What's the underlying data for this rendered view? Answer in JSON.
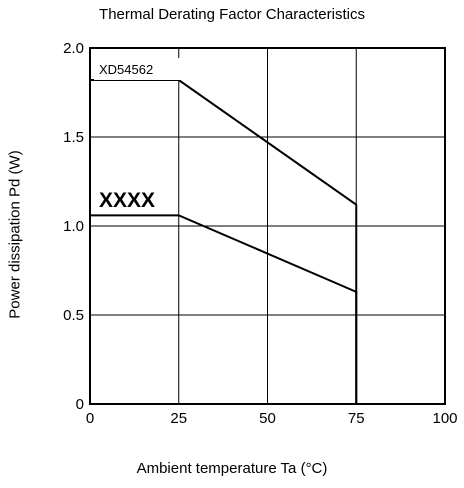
{
  "chart_data": {
    "type": "line",
    "title": "Thermal Derating Factor Characteristics",
    "xlabel": "Ambient temperature  Ta (°C)",
    "ylabel": "Power dissipation  Pd (W)",
    "xlim": [
      0,
      100
    ],
    "ylim": [
      0,
      2.0
    ],
    "xticks": [
      "0",
      "25",
      "50",
      "75",
      "100"
    ],
    "yticks": [
      "0",
      "0.5",
      "1.0",
      "1.5",
      "2.0"
    ],
    "grid": true,
    "series": [
      {
        "name": "XD54562",
        "points": [
          [
            0,
            1.82
          ],
          [
            25,
            1.82
          ],
          [
            75,
            1.12
          ],
          [
            75,
            0
          ]
        ]
      },
      {
        "name": "XXXX",
        "points": [
          [
            0,
            1.06
          ],
          [
            25,
            1.06
          ],
          [
            75,
            0.63
          ],
          [
            75,
            0
          ]
        ]
      }
    ]
  }
}
